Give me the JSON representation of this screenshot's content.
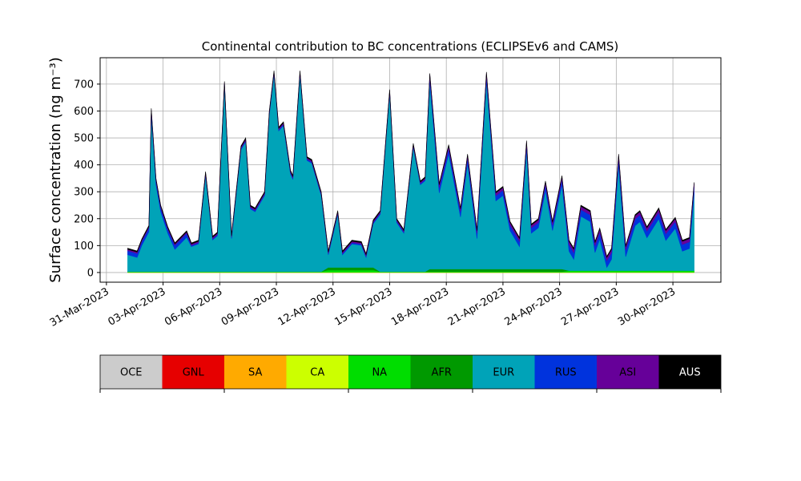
{
  "chart_data": {
    "type": "stacked_area",
    "title": "Continental contribution to BC concentrations (ECLIPSEv6 and CAMS)",
    "ylabel": "Surface concentration (ng m⁻³)",
    "grid": true,
    "legend": "bottom",
    "xlim": [
      "2023-03-30T16:00",
      "2023-05-02T13:00"
    ],
    "xticks": [
      {
        "value": "2023-03-31T00:00",
        "label": "31-Mar-2023"
      },
      {
        "value": "2023-04-03T00:00",
        "label": "03-Apr-2023"
      },
      {
        "value": "2023-04-06T00:00",
        "label": "06-Apr-2023"
      },
      {
        "value": "2023-04-09T00:00",
        "label": "09-Apr-2023"
      },
      {
        "value": "2023-04-12T00:00",
        "label": "12-Apr-2023"
      },
      {
        "value": "2023-04-15T00:00",
        "label": "15-Apr-2023"
      },
      {
        "value": "2023-04-18T00:00",
        "label": "18-Apr-2023"
      },
      {
        "value": "2023-04-21T00:00",
        "label": "21-Apr-2023"
      },
      {
        "value": "2023-04-24T00:00",
        "label": "24-Apr-2023"
      },
      {
        "value": "2023-04-27T00:00",
        "label": "27-Apr-2023"
      },
      {
        "value": "2023-04-30T00:00",
        "label": "30-Apr-2023"
      }
    ],
    "ylim": [
      -36,
      798
    ],
    "yticks": [
      0,
      100,
      200,
      300,
      400,
      500,
      600,
      700
    ],
    "x": [
      "2023-04-01T03:00",
      "2023-04-01T15:00",
      "2023-04-01T21:00",
      "2023-04-02T06:00",
      "2023-04-02T09:00",
      "2023-04-02T15:00",
      "2023-04-02T21:00",
      "2023-04-03T06:00",
      "2023-04-03T15:00",
      "2023-04-04T06:00",
      "2023-04-04T12:00",
      "2023-04-04T21:00",
      "2023-04-05T06:00",
      "2023-04-05T15:00",
      "2023-04-05T21:00",
      "2023-04-06T06:00",
      "2023-04-06T15:00",
      "2023-04-07T03:00",
      "2023-04-07T09:00",
      "2023-04-07T15:00",
      "2023-04-07T21:00",
      "2023-04-08T09:00",
      "2023-04-08T15:00",
      "2023-04-08T21:00",
      "2023-04-09T03:00",
      "2023-04-09T09:00",
      "2023-04-09T18:00",
      "2023-04-09T21:00",
      "2023-04-10T06:00",
      "2023-04-10T15:00",
      "2023-04-10T21:00",
      "2023-04-11T09:00",
      "2023-04-11T18:00",
      "2023-04-12T06:00",
      "2023-04-12T12:00",
      "2023-04-13T00:00",
      "2023-04-13T12:00",
      "2023-04-13T18:00",
      "2023-04-14T03:00",
      "2023-04-14T12:00",
      "2023-04-15T00:00",
      "2023-04-15T09:00",
      "2023-04-15T18:00",
      "2023-04-16T06:00",
      "2023-04-16T15:00",
      "2023-04-16T21:00",
      "2023-04-17T03:00",
      "2023-04-17T15:00",
      "2023-04-18T03:00",
      "2023-04-18T18:00",
      "2023-04-19T03:00",
      "2023-04-19T15:00",
      "2023-04-20T03:00",
      "2023-04-20T15:00",
      "2023-04-21T00:00",
      "2023-04-21T09:00",
      "2023-04-21T21:00",
      "2023-04-22T06:00",
      "2023-04-22T12:00",
      "2023-04-22T21:00",
      "2023-04-23T06:00",
      "2023-04-23T15:00",
      "2023-04-24T03:00",
      "2023-04-24T12:00",
      "2023-04-24T18:00",
      "2023-04-25T03:00",
      "2023-04-25T15:00",
      "2023-04-25T21:00",
      "2023-04-26T03:00",
      "2023-04-26T12:00",
      "2023-04-26T18:00",
      "2023-04-27T03:00",
      "2023-04-27T12:00",
      "2023-04-28T00:00",
      "2023-04-28T06:00",
      "2023-04-28T15:00",
      "2023-04-29T06:00",
      "2023-04-29T15:00",
      "2023-04-30T03:00",
      "2023-04-30T12:00",
      "2023-04-30T21:00",
      "2023-05-01T03:00"
    ],
    "series": [
      {
        "name": "OCE",
        "color": "#cccccc",
        "text_color": "#000000",
        "values": [
          0,
          0,
          0,
          0,
          0,
          0,
          0,
          0,
          0,
          0,
          0,
          0,
          0,
          0,
          0,
          0,
          0,
          0,
          0,
          0,
          0,
          0,
          0,
          0,
          0,
          0,
          0,
          0,
          0,
          0,
          0,
          0,
          0,
          0,
          0,
          0,
          0,
          0,
          0,
          0,
          0,
          0,
          0,
          0,
          0,
          0,
          0,
          0,
          0,
          0,
          0,
          0,
          0,
          0,
          0,
          0,
          0,
          0,
          0,
          0,
          0,
          0,
          0,
          0,
          0,
          0,
          0,
          0,
          0,
          0,
          0,
          0,
          0,
          0,
          0,
          0,
          0,
          0,
          0,
          0,
          0,
          0
        ]
      },
      {
        "name": "GNL",
        "color": "#e60000",
        "text_color": "#000000",
        "values": [
          0,
          0,
          0,
          0,
          0,
          0,
          0,
          0,
          0,
          0,
          0,
          0,
          0,
          0,
          0,
          0,
          0,
          0,
          0,
          0,
          0,
          0,
          0,
          0,
          0,
          0,
          0,
          0,
          0,
          0,
          0,
          0,
          0,
          0,
          0,
          0,
          0,
          0,
          0,
          0,
          0,
          0,
          0,
          0,
          0,
          0,
          0,
          0,
          0,
          0,
          0,
          0,
          0,
          0,
          0,
          0,
          0,
          0,
          0,
          0,
          0,
          0,
          0,
          0,
          0,
          0,
          0,
          0,
          0,
          0,
          0,
          0,
          0,
          0,
          0,
          0,
          0,
          0,
          0,
          0,
          0,
          0
        ]
      },
      {
        "name": "SA",
        "color": "#ffaa00",
        "text_color": "#000000",
        "values": [
          0,
          0,
          0,
          0,
          0,
          0,
          0,
          0,
          0,
          0,
          0,
          0,
          0,
          0,
          0,
          0,
          0,
          0,
          0,
          0,
          0,
          0,
          0,
          0,
          0,
          0,
          0,
          0,
          0,
          0,
          0,
          0,
          0,
          0,
          0,
          0,
          0,
          0,
          0,
          0,
          0,
          0,
          0,
          0,
          0,
          0,
          0,
          0,
          0,
          0,
          0,
          0,
          0,
          0,
          0,
          0,
          0,
          0,
          0,
          0,
          0,
          0,
          0,
          0,
          0,
          0,
          0,
          0,
          0,
          0,
          0,
          0,
          0,
          0,
          0,
          0,
          0,
          0,
          0,
          0,
          0,
          0
        ]
      },
      {
        "name": "CA",
        "color": "#ccff00",
        "text_color": "#000000",
        "values": [
          1,
          1,
          1,
          1,
          1,
          1,
          1,
          1,
          1,
          1,
          1,
          1,
          1,
          1,
          1,
          1,
          1,
          1,
          1,
          1,
          1,
          1,
          1,
          1,
          1,
          1,
          1,
          1,
          1,
          1,
          1,
          1,
          1,
          1,
          1,
          1,
          1,
          1,
          1,
          1,
          1,
          1,
          1,
          1,
          1,
          1,
          1,
          1,
          1,
          1,
          1,
          1,
          1,
          1,
          1,
          1,
          1,
          1,
          1,
          1,
          1,
          1,
          1,
          1,
          1,
          1,
          1,
          1,
          1,
          1,
          1,
          1,
          1,
          1,
          1,
          1,
          1,
          1,
          1,
          1,
          1,
          1
        ]
      },
      {
        "name": "NA",
        "color": "#00dd00",
        "text_color": "#000000",
        "values": [
          2,
          2,
          2,
          2,
          2,
          2,
          2,
          2,
          2,
          2,
          2,
          2,
          2,
          2,
          2,
          2,
          2,
          2,
          2,
          2,
          2,
          2,
          2,
          2,
          2,
          2,
          2,
          2,
          2,
          2,
          2,
          2,
          8,
          8,
          8,
          8,
          8,
          8,
          8,
          2,
          2,
          2,
          2,
          2,
          2,
          2,
          2,
          2,
          2,
          2,
          2,
          2,
          2,
          2,
          2,
          2,
          2,
          2,
          2,
          2,
          2,
          2,
          2,
          6,
          6,
          6,
          6,
          6,
          6,
          6,
          6,
          6,
          6,
          6,
          6,
          6,
          6,
          6,
          6,
          6,
          6,
          6
        ]
      },
      {
        "name": "AFR",
        "color": "#009900",
        "text_color": "#000000",
        "values": [
          0,
          0,
          0,
          0,
          0,
          0,
          0,
          0,
          0,
          0,
          0,
          0,
          0,
          0,
          0,
          0,
          0,
          0,
          0,
          0,
          0,
          0,
          0,
          0,
          0,
          0,
          0,
          0,
          0,
          0,
          0,
          0,
          10,
          10,
          10,
          10,
          10,
          10,
          10,
          0,
          0,
          0,
          0,
          0,
          0,
          0,
          10,
          10,
          10,
          10,
          10,
          10,
          10,
          10,
          10,
          10,
          10,
          10,
          10,
          10,
          10,
          10,
          10,
          0,
          0,
          0,
          0,
          0,
          0,
          0,
          0,
          0,
          0,
          0,
          0,
          0,
          0,
          0,
          0,
          0,
          0,
          0
        ]
      },
      {
        "name": "EUR",
        "color": "#00a3b8",
        "text_color": "#000000",
        "values": [
          63,
          53,
          98,
          148,
          583,
          323,
          223,
          143,
          83,
          128,
          93,
          103,
          358,
          118,
          133,
          693,
          123,
          453,
          483,
          233,
          223,
          283,
          583,
          733,
          523,
          543,
          363,
          343,
          733,
          413,
          403,
          283,
          47,
          197,
          47,
          87,
          82,
          37,
          162,
          213,
          663,
          183,
          143,
          463,
          323,
          338,
          693,
          283,
          428,
          193,
          393,
          113,
          698,
          253,
          273,
          143,
          83,
          443,
          133,
          153,
          293,
          143,
          313,
          72,
          42,
          202,
          182,
          67,
          117,
          12,
          42,
          392,
          52,
          167,
          182,
          122,
          192,
          112,
          157,
          72,
          82,
          287
        ]
      },
      {
        "name": "RUS",
        "color": "#0033dd",
        "text_color": "#000000",
        "values": [
          15,
          15,
          15,
          15,
          15,
          15,
          15,
          15,
          15,
          15,
          5,
          5,
          5,
          5,
          5,
          5,
          5,
          5,
          5,
          5,
          5,
          5,
          5,
          5,
          5,
          5,
          5,
          5,
          5,
          5,
          5,
          5,
          5,
          5,
          5,
          5,
          5,
          5,
          5,
          5,
          5,
          5,
          5,
          5,
          5,
          5,
          20,
          20,
          20,
          20,
          20,
          20,
          20,
          20,
          20,
          20,
          20,
          20,
          20,
          20,
          20,
          20,
          20,
          25,
          25,
          25,
          25,
          25,
          25,
          25,
          25,
          25,
          25,
          25,
          25,
          25,
          25,
          25,
          25,
          25,
          25,
          25
        ]
      },
      {
        "name": "ASI",
        "color": "#660099",
        "text_color": "#000000",
        "values": [
          5,
          5,
          5,
          5,
          5,
          5,
          5,
          5,
          5,
          5,
          5,
          5,
          5,
          5,
          5,
          5,
          5,
          5,
          5,
          5,
          5,
          5,
          5,
          5,
          5,
          5,
          5,
          5,
          5,
          5,
          5,
          5,
          5,
          5,
          5,
          5,
          5,
          5,
          5,
          5,
          5,
          5,
          5,
          5,
          5,
          5,
          10,
          10,
          10,
          10,
          10,
          10,
          10,
          10,
          10,
          10,
          10,
          10,
          10,
          10,
          10,
          10,
          10,
          12,
          12,
          12,
          12,
          12,
          12,
          12,
          12,
          12,
          12,
          12,
          12,
          12,
          12,
          12,
          12,
          12,
          12,
          12
        ]
      },
      {
        "name": "AUS",
        "color": "#000000",
        "text_color": "#ffffff",
        "values": [
          4,
          4,
          4,
          4,
          4,
          4,
          4,
          4,
          4,
          4,
          4,
          4,
          4,
          4,
          4,
          4,
          4,
          4,
          4,
          4,
          4,
          4,
          4,
          4,
          4,
          4,
          4,
          4,
          4,
          4,
          4,
          4,
          4,
          4,
          4,
          4,
          4,
          4,
          4,
          4,
          4,
          4,
          4,
          4,
          4,
          4,
          4,
          4,
          4,
          4,
          4,
          4,
          4,
          4,
          4,
          4,
          4,
          4,
          4,
          4,
          4,
          4,
          4,
          4,
          4,
          4,
          4,
          4,
          4,
          4,
          4,
          4,
          4,
          4,
          4,
          4,
          4,
          4,
          4,
          4,
          4,
          4
        ]
      }
    ]
  }
}
